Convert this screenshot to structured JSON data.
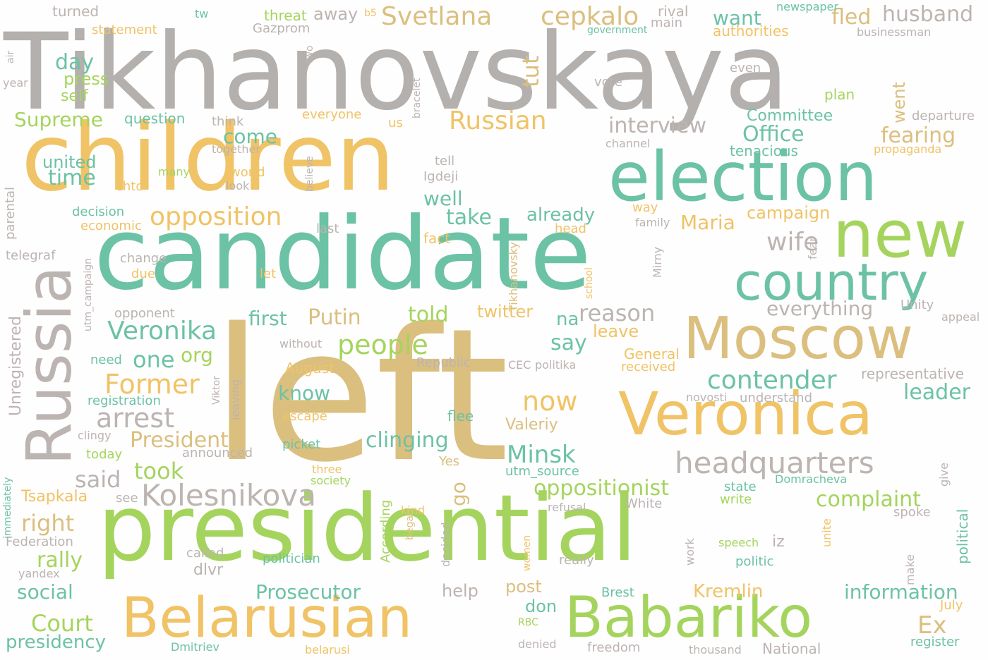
{
  "palette": {
    "gold": "#f0c366",
    "tan": "#dbbf7f",
    "gray": "#b3b0ad",
    "taupe": "#bcb4b1",
    "teal": "#6cc2a5",
    "green": "#a5d45e"
  },
  "words": [
    {
      "text": "Tikhanovskaya",
      "color": "gray"
    },
    {
      "text": "children",
      "color": "gold"
    },
    {
      "text": "election",
      "color": "teal"
    },
    {
      "text": "candidate",
      "color": "teal"
    },
    {
      "text": "new",
      "color": "green"
    },
    {
      "text": "country",
      "color": "teal"
    },
    {
      "text": "Russia",
      "color": "taupe"
    },
    {
      "text": "left",
      "color": "tan"
    },
    {
      "text": "Moscow",
      "color": "tan"
    },
    {
      "text": "Veronica",
      "color": "gold"
    },
    {
      "text": "presidential",
      "color": "green"
    },
    {
      "text": "Belarusian",
      "color": "gold"
    },
    {
      "text": "Babariko",
      "color": "green"
    },
    {
      "text": "Svetlana",
      "color": "tan"
    },
    {
      "text": "cepkalo",
      "color": "tan"
    },
    {
      "text": "husband",
      "color": "taupe"
    },
    {
      "text": "fled",
      "color": "tan"
    },
    {
      "text": "want",
      "color": "teal"
    },
    {
      "text": "Russian",
      "color": "gold"
    },
    {
      "text": "interview",
      "color": "taupe"
    },
    {
      "text": "Office",
      "color": "teal"
    },
    {
      "text": "fearing",
      "color": "tan"
    },
    {
      "text": "opposition",
      "color": "gold"
    },
    {
      "text": "wife",
      "color": "taupe"
    },
    {
      "text": "Maria",
      "color": "gold"
    },
    {
      "text": "campaign",
      "color": "gold"
    },
    {
      "text": "headquarters",
      "color": "taupe"
    },
    {
      "text": "contender",
      "color": "teal"
    },
    {
      "text": "people",
      "color": "green"
    },
    {
      "text": "Veronika",
      "color": "teal"
    },
    {
      "text": "Putin",
      "color": "tan"
    },
    {
      "text": "told",
      "color": "green"
    },
    {
      "text": "first",
      "color": "teal"
    },
    {
      "text": "reason",
      "color": "taupe"
    },
    {
      "text": "everything",
      "color": "taupe"
    },
    {
      "text": "arrest",
      "color": "taupe"
    },
    {
      "text": "Former",
      "color": "gold"
    },
    {
      "text": "Kolesnikova",
      "color": "taupe"
    },
    {
      "text": "oppositionist",
      "color": "green"
    },
    {
      "text": "clinging",
      "color": "teal"
    },
    {
      "text": "now",
      "color": "gold"
    },
    {
      "text": "Minsk",
      "color": "teal"
    },
    {
      "text": "President",
      "color": "tan"
    },
    {
      "text": "took",
      "color": "green"
    },
    {
      "text": "said",
      "color": "taupe"
    },
    {
      "text": "Court",
      "color": "green"
    },
    {
      "text": "rally",
      "color": "green"
    },
    {
      "text": "social",
      "color": "teal"
    },
    {
      "text": "presidency",
      "color": "teal"
    },
    {
      "text": "right",
      "color": "tan"
    },
    {
      "text": "Prosecutor",
      "color": "teal"
    },
    {
      "text": "Kremlin",
      "color": "gold"
    },
    {
      "text": "information",
      "color": "teal"
    },
    {
      "text": "Ex",
      "color": "tan"
    },
    {
      "text": "complaint",
      "color": "green"
    },
    {
      "text": "leader",
      "color": "teal"
    },
    {
      "text": "well",
      "color": "teal"
    },
    {
      "text": "take",
      "color": "teal"
    },
    {
      "text": "already",
      "color": "teal"
    },
    {
      "text": "come",
      "color": "teal"
    },
    {
      "text": "tut",
      "color": "tan"
    },
    {
      "text": "day",
      "color": "teal"
    },
    {
      "text": "press",
      "color": "green"
    },
    {
      "text": "self",
      "color": "green"
    },
    {
      "text": "Supreme",
      "color": "green"
    },
    {
      "text": "united",
      "color": "teal"
    },
    {
      "text": "time",
      "color": "teal"
    },
    {
      "text": "one",
      "color": "teal"
    },
    {
      "text": "org",
      "color": "green"
    },
    {
      "text": "say",
      "color": "teal"
    },
    {
      "text": "na",
      "color": "teal"
    },
    {
      "text": "go",
      "color": "tan"
    },
    {
      "text": "know",
      "color": "teal"
    },
    {
      "text": "twitter",
      "color": "gold"
    },
    {
      "text": "leave",
      "color": "gold"
    },
    {
      "text": "Committee",
      "color": "teal"
    },
    {
      "text": "tenacious",
      "color": "teal"
    },
    {
      "text": "went",
      "color": "tan"
    },
    {
      "text": "authorities",
      "color": "gold"
    },
    {
      "text": "threat",
      "color": "green"
    },
    {
      "text": "statement",
      "color": "gold"
    },
    {
      "text": "turned",
      "color": "taupe"
    },
    {
      "text": "Gazprom",
      "color": "taupe"
    },
    {
      "text": "away",
      "color": "taupe"
    },
    {
      "text": "rival",
      "color": "taupe"
    },
    {
      "text": "main",
      "color": "taupe"
    },
    {
      "text": "government",
      "color": "teal"
    },
    {
      "text": "newspaper",
      "color": "teal"
    },
    {
      "text": "businessman",
      "color": "taupe"
    },
    {
      "text": "vote",
      "color": "taupe"
    },
    {
      "text": "plan",
      "color": "green"
    },
    {
      "text": "even",
      "color": "taupe"
    },
    {
      "text": "departure",
      "color": "taupe"
    },
    {
      "text": "question",
      "color": "teal"
    },
    {
      "text": "think",
      "color": "taupe"
    },
    {
      "text": "together",
      "color": "taupe"
    },
    {
      "text": "everyone",
      "color": "gold"
    },
    {
      "text": "us",
      "color": "gold"
    },
    {
      "text": "many",
      "color": "green"
    },
    {
      "text": "world",
      "color": "gold"
    },
    {
      "text": "look",
      "color": "taupe"
    },
    {
      "text": "chto",
      "color": "gold"
    },
    {
      "text": "decision",
      "color": "teal"
    },
    {
      "text": "economic",
      "color": "gold"
    },
    {
      "text": "telegraf",
      "color": "taupe"
    },
    {
      "text": "change",
      "color": "taupe"
    },
    {
      "text": "due",
      "color": "gold"
    },
    {
      "text": "opponent",
      "color": "taupe"
    },
    {
      "text": "last",
      "color": "taupe"
    },
    {
      "text": "fact",
      "color": "gold"
    },
    {
      "text": "let",
      "color": "gold"
    },
    {
      "text": "head",
      "color": "gold"
    },
    {
      "text": "way",
      "color": "gold"
    },
    {
      "text": "family",
      "color": "taupe"
    },
    {
      "text": "tell",
      "color": "taupe"
    },
    {
      "text": "Igdeji",
      "color": "taupe"
    },
    {
      "text": "channel",
      "color": "taupe"
    },
    {
      "text": "propaganda",
      "color": "gold"
    },
    {
      "text": "Unity",
      "color": "taupe"
    },
    {
      "text": "appeal",
      "color": "taupe"
    },
    {
      "text": "need",
      "color": "teal"
    },
    {
      "text": "without",
      "color": "taupe"
    },
    {
      "text": "Republic",
      "color": "taupe"
    },
    {
      "text": "CEC",
      "color": "taupe"
    },
    {
      "text": "politika",
      "color": "taupe"
    },
    {
      "text": "General",
      "color": "gold"
    },
    {
      "text": "received",
      "color": "gold"
    },
    {
      "text": "representative",
      "color": "taupe"
    },
    {
      "text": "August",
      "color": "gold"
    },
    {
      "text": "registration",
      "color": "teal"
    },
    {
      "text": "escape",
      "color": "gold"
    },
    {
      "text": "flee",
      "color": "teal"
    },
    {
      "text": "Valeriy",
      "color": "tan"
    },
    {
      "text": "novosti",
      "color": "taupe"
    },
    {
      "text": "understand",
      "color": "taupe"
    },
    {
      "text": "clingy",
      "color": "taupe"
    },
    {
      "text": "today",
      "color": "green"
    },
    {
      "text": "picket",
      "color": "teal"
    },
    {
      "text": "announced",
      "color": "taupe"
    },
    {
      "text": "Yes",
      "color": "tan"
    },
    {
      "text": "utm_source",
      "color": "teal"
    },
    {
      "text": "three",
      "color": "gold"
    },
    {
      "text": "society",
      "color": "green"
    },
    {
      "text": "Domracheva",
      "color": "teal"
    },
    {
      "text": "state",
      "color": "teal"
    },
    {
      "text": "write",
      "color": "green"
    },
    {
      "text": "Tsapkala",
      "color": "gold"
    },
    {
      "text": "see",
      "color": "taupe"
    },
    {
      "text": "refusal",
      "color": "taupe"
    },
    {
      "text": "White",
      "color": "taupe"
    },
    {
      "text": "kind",
      "color": "gold"
    },
    {
      "text": "spoke",
      "color": "taupe"
    },
    {
      "text": "Federation",
      "color": "taupe"
    },
    {
      "text": "yandex",
      "color": "taupe"
    },
    {
      "text": "called",
      "color": "taupe"
    },
    {
      "text": "politician",
      "color": "teal"
    },
    {
      "text": "dlvr",
      "color": "taupe"
    },
    {
      "text": "speech",
      "color": "green"
    },
    {
      "text": "iz",
      "color": "taupe"
    },
    {
      "text": "politic",
      "color": "teal"
    },
    {
      "text": "really",
      "color": "taupe"
    },
    {
      "text": "post",
      "color": "tan"
    },
    {
      "text": "help",
      "color": "taupe"
    },
    {
      "text": "don",
      "color": "teal"
    },
    {
      "text": "RBC",
      "color": "green"
    },
    {
      "text": "Brest",
      "color": "teal"
    },
    {
      "text": "July",
      "color": "gold"
    },
    {
      "text": "Dmitriev",
      "color": "teal"
    },
    {
      "text": "belarusi",
      "color": "gold"
    },
    {
      "text": "denied",
      "color": "taupe"
    },
    {
      "text": "freedom",
      "color": "taupe"
    },
    {
      "text": "thousand",
      "color": "taupe"
    },
    {
      "text": "National",
      "color": "taupe"
    },
    {
      "text": "register",
      "color": "teal"
    },
    {
      "text": "year",
      "color": "taupe"
    },
    {
      "text": "tw",
      "color": "teal"
    },
    {
      "text": "b5",
      "color": "gold"
    },
    {
      "text": "air",
      "color": "taupe"
    },
    {
      "text": "two",
      "color": "taupe"
    },
    {
      "text": "bracelet",
      "color": "taupe"
    },
    {
      "text": "believe",
      "color": "taupe"
    },
    {
      "text": "parental",
      "color": "taupe"
    },
    {
      "text": "Unregistered",
      "color": "taupe"
    },
    {
      "text": "utm_campaign",
      "color": "taupe"
    },
    {
      "text": "Tikhanovsky",
      "color": "tan"
    },
    {
      "text": "school",
      "color": "gold"
    },
    {
      "text": "Mirny",
      "color": "taupe"
    },
    {
      "text": "fear",
      "color": "taupe"
    },
    {
      "text": "Viktor",
      "color": "taupe"
    },
    {
      "text": "leaving",
      "color": "taupe"
    },
    {
      "text": "According",
      "color": "green"
    },
    {
      "text": "began",
      "color": "tan"
    },
    {
      "text": "decided",
      "color": "taupe"
    },
    {
      "text": "women",
      "color": "gold"
    },
    {
      "text": "work",
      "color": "taupe"
    },
    {
      "text": "unite",
      "color": "gold"
    },
    {
      "text": "make",
      "color": "taupe"
    },
    {
      "text": "give",
      "color": "taupe"
    },
    {
      "text": "political",
      "color": "teal"
    },
    {
      "text": "immediately",
      "color": "teal"
    }
  ]
}
